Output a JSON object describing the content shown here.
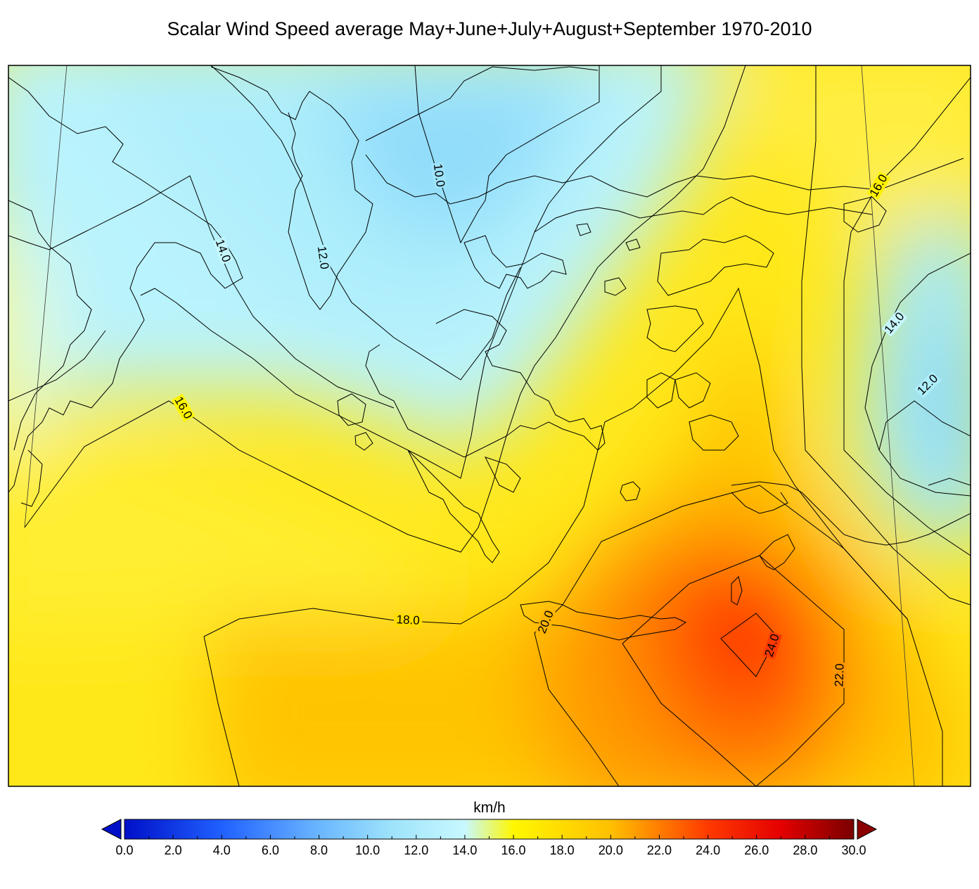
{
  "title": "Scalar Wind Speed average May+June+July+August+September 1970-2010",
  "colorbar": {
    "unit": "km/h",
    "min": 0.0,
    "max": 30.0,
    "extend": "both",
    "tick_labels": [
      "0.0",
      "2.0",
      "4.0",
      "6.0",
      "8.0",
      "10.0",
      "12.0",
      "14.0",
      "16.0",
      "18.0",
      "20.0",
      "22.0",
      "24.0",
      "26.0",
      "28.0",
      "30.0"
    ],
    "color_stops": [
      {
        "value": 0,
        "color": "#0010c8"
      },
      {
        "value": 4,
        "color": "#2060ff"
      },
      {
        "value": 8,
        "color": "#6ab6ff"
      },
      {
        "value": 11,
        "color": "#9ee3fb"
      },
      {
        "value": 14,
        "color": "#c8f8ff"
      },
      {
        "value": 16,
        "color": "#fff700"
      },
      {
        "value": 20,
        "color": "#ffc000"
      },
      {
        "value": 24,
        "color": "#ff3a00"
      },
      {
        "value": 27,
        "color": "#e40000"
      },
      {
        "value": 30,
        "color": "#7a0000"
      }
    ],
    "under_color": "#0010c8",
    "over_color": "#8b0000"
  },
  "contour_labels": [
    "10.0",
    "12.0",
    "14.0",
    "16.0",
    "18.0",
    "20.0",
    "22.0",
    "24.0",
    "16.0",
    "14.0",
    "12.0"
  ],
  "chart_data": {
    "type": "heatmap",
    "title": "Scalar Wind Speed average May+June+July+August+September 1970-2010",
    "colorbar_label": "km/h",
    "range": [
      0,
      30
    ],
    "contour_levels": [
      10,
      12,
      14,
      16,
      18,
      20,
      22,
      24
    ]
  }
}
